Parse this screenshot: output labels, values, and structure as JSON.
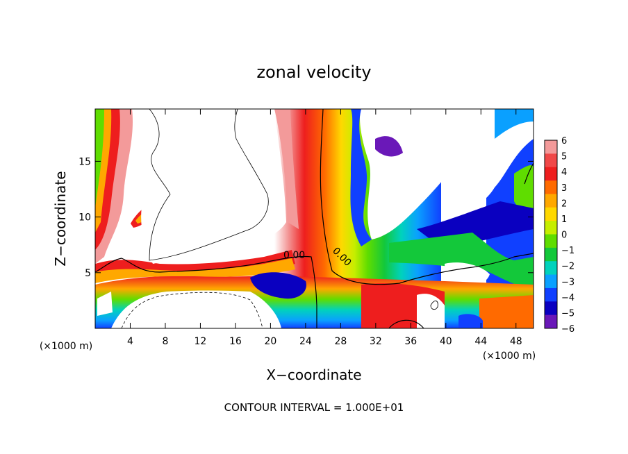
{
  "chart_data": {
    "type": "heatmap",
    "title": "zonal velocity",
    "xlabel": "X−coordinate",
    "ylabel": "Z−coordinate",
    "x_unit": "(×1000 m)",
    "y_unit": "(×1000 m)",
    "xlim": [
      0,
      50
    ],
    "ylim": [
      0,
      19.7
    ],
    "x_ticks": [
      4,
      8,
      12,
      16,
      20,
      24,
      28,
      32,
      36,
      40,
      44,
      48
    ],
    "y_ticks": [
      5,
      10,
      15
    ],
    "x_tick_labels": [
      "4",
      "8",
      "12",
      "16",
      "20",
      "24",
      "28",
      "32",
      "36",
      "40",
      "44",
      "48"
    ],
    "y_tick_labels": [
      "5",
      "10",
      "15"
    ],
    "colorbar": {
      "levels": [
        6,
        5,
        4,
        3,
        2,
        1,
        0,
        -1,
        -2,
        -3,
        -4,
        -5,
        -6
      ],
      "labels": [
        "6",
        "5",
        "4",
        "3",
        "2",
        "1",
        "0",
        "−1",
        "−2",
        "−3",
        "−4",
        "−5",
        "−6"
      ],
      "colors": [
        "#f39a9a",
        "#f04848",
        "#ee1e1e",
        "#ff6a00",
        "#ffa800",
        "#ffd800",
        "#c6ee00",
        "#5fdd00",
        "#13c83a",
        "#00d2bc",
        "#0aa0ff",
        "#1040ff",
        "#0a00c0",
        "#6a18b8"
      ]
    },
    "contour_labels": [
      "0.00",
      "0.00"
    ],
    "footer": "CONTOUR INTERVAL = 1.000E+01",
    "regions_description_values": {
      "jet_core_positive": [
        24,
        26
      ],
      "negative_core_x": [
        29,
        40
      ],
      "zero_contour_x": 26
    }
  }
}
